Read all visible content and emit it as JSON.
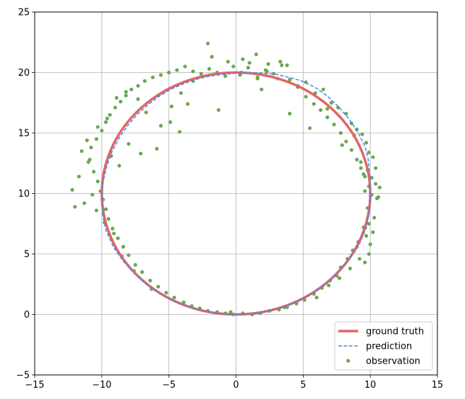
{
  "chart_data": {
    "type": "scatter",
    "title": "",
    "xlabel": "",
    "ylabel": "",
    "xlim": [
      -15,
      15
    ],
    "ylim": [
      -5,
      25
    ],
    "xticks": [
      -15,
      -10,
      -5,
      0,
      5,
      10,
      15
    ],
    "yticks": [
      -5,
      0,
      5,
      10,
      15,
      20,
      25
    ],
    "xtick_labels": [
      "−15",
      "−10",
      "−5",
      "0",
      "5",
      "10",
      "15"
    ],
    "ytick_labels": [
      "−5",
      "0",
      "5",
      "10",
      "15",
      "20",
      "25"
    ],
    "grid": true,
    "legend_position": "lower-right",
    "series": [
      {
        "name": "ground truth",
        "kind": "line",
        "style": "solid",
        "color": "#e06666",
        "shape": "circle",
        "center": [
          0,
          10
        ],
        "radius": 10
      },
      {
        "name": "prediction",
        "kind": "line",
        "style": "dashed",
        "color": "#4a86e8",
        "x": [
          0.0,
          1.0,
          2.0,
          2.98,
          3.95,
          4.9,
          5.83,
          6.72,
          7.57,
          8.37,
          9.1,
          9.72,
          10.0,
          9.98,
          9.85,
          9.6,
          9.1,
          8.4,
          7.6,
          6.75,
          5.85,
          4.9,
          3.95,
          3.0,
          2.0,
          1.0,
          0.0,
          -0.98,
          -1.95,
          -2.9,
          -3.85,
          -4.8,
          -5.7,
          -6.55,
          -7.35,
          -8.05,
          -8.7,
          -9.25,
          -9.65,
          -9.92,
          -10.0,
          -9.95,
          -9.7,
          -9.15,
          -8.4,
          -7.6,
          -6.75,
          -5.85,
          -4.9,
          -3.95,
          -3.0,
          -2.0,
          -1.0,
          0.0
        ],
        "y": [
          0.0,
          0.05,
          0.2,
          0.45,
          0.8,
          1.25,
          1.85,
          2.6,
          3.45,
          4.45,
          5.6,
          7.2,
          9.4,
          11.3,
          12.8,
          13.9,
          15.0,
          16.2,
          17.2,
          18.1,
          18.8,
          19.3,
          19.6,
          19.85,
          19.95,
          20.0,
          19.95,
          19.85,
          19.7,
          19.45,
          19.1,
          18.65,
          18.05,
          17.35,
          16.55,
          15.65,
          14.6,
          13.45,
          12.2,
          10.9,
          9.6,
          8.3,
          7.0,
          5.6,
          4.4,
          3.4,
          2.6,
          1.85,
          1.25,
          0.8,
          0.45,
          0.2,
          0.05,
          0.0
        ]
      },
      {
        "name": "observation",
        "kind": "scatter",
        "color": "#6aa84f",
        "x": [
          0.3,
          0.9,
          1.6,
          2.3,
          3.1,
          3.8,
          4.6,
          5.2,
          5.9,
          6.5,
          7.1,
          7.6,
          8.2,
          8.6,
          9.0,
          9.4,
          9.7,
          9.9,
          10.2,
          10.4,
          10.1,
          9.6,
          10.5,
          9.8,
          10.3,
          9.5,
          9.7,
          10.0,
          9.9,
          9.6,
          10.4,
          10.6,
          9.8,
          9.3,
          9.9,
          9.1,
          8.7,
          8.3,
          7.8,
          7.5,
          7.0,
          6.4,
          5.8,
          5.1,
          4.5,
          3.8,
          3.2,
          2.5,
          1.8,
          1.2,
          0.5,
          -0.2,
          -0.8,
          -1.4,
          -2.1,
          -2.7,
          -3.3,
          -3.9,
          -4.6,
          -5.2,
          -5.8,
          -6.4,
          -7.0,
          -7.5,
          -8.0,
          -8.4,
          -8.8,
          -9.2,
          -9.5,
          -9.7,
          -9.9,
          -10.1,
          -10.3,
          -10.6,
          -11.0,
          -11.5,
          -12.2,
          -11.7,
          -10.8,
          -10.4,
          -10.0,
          -9.7,
          -9.4,
          -9.0,
          -8.6,
          -8.2,
          -7.8,
          -7.3,
          -6.8,
          -6.2,
          -5.6,
          -5.0,
          -4.4,
          -3.8,
          -3.2,
          -2.6,
          -2.0,
          -1.4,
          -0.8,
          -0.2,
          0.4,
          1.0,
          1.6,
          2.2,
          2.8,
          3.4,
          4.0,
          4.6,
          5.2,
          5.8,
          6.3,
          6.8,
          7.3,
          7.8,
          8.2,
          8.6,
          9.0,
          9.3,
          9.6,
          9.9,
          10.1,
          -2.1,
          -1.8,
          -0.6,
          0.5,
          1.5,
          2.4,
          3.3,
          -3.2,
          -4.1,
          -4.8,
          -5.6,
          -6.7,
          -7.3,
          -8.2,
          -8.9,
          -9.6,
          -10.3,
          -11.1,
          -10.9,
          -9.3,
          -8.7,
          -8.0,
          -7.1,
          -5.9,
          -4.9,
          -4.2,
          -3.6,
          -1.3,
          1.9,
          4.0,
          5.5,
          6.8,
          7.9,
          8.8,
          9.5,
          10.7,
          10.2,
          9.2,
          8.5,
          7.7,
          6.9,
          6.0,
          3.6,
          -0.4,
          -6.3,
          -7.6,
          -8.5,
          -9.1,
          -9.8,
          -10.4,
          -11.3,
          -12.0,
          -10.7
        ],
        "y": [
          19.8,
          20.4,
          19.6,
          20.1,
          19.5,
          20.6,
          18.9,
          19.2,
          18.3,
          18.6,
          17.5,
          17.1,
          16.6,
          15.8,
          15.3,
          14.9,
          14.2,
          13.4,
          13.0,
          12.1,
          11.3,
          10.2,
          9.6,
          8.8,
          8.0,
          7.2,
          6.5,
          5.8,
          5.0,
          4.3,
          10.8,
          9.7,
          11.9,
          12.6,
          7.5,
          6.0,
          5.3,
          4.6,
          3.9,
          3.2,
          2.8,
          2.2,
          1.7,
          1.2,
          0.9,
          0.6,
          0.4,
          0.3,
          0.1,
          0.0,
          0.1,
          0.0,
          0.1,
          0.2,
          0.3,
          0.5,
          0.7,
          1.0,
          1.4,
          1.8,
          2.3,
          2.8,
          3.5,
          4.1,
          4.9,
          5.6,
          6.3,
          7.1,
          7.9,
          8.7,
          9.5,
          10.2,
          11.0,
          11.8,
          12.6,
          13.5,
          10.3,
          11.4,
          13.8,
          14.5,
          15.2,
          15.9,
          16.5,
          17.1,
          17.6,
          18.1,
          18.6,
          18.9,
          19.3,
          19.6,
          19.8,
          20.0,
          20.2,
          20.5,
          20.1,
          19.9,
          20.3,
          20.0,
          19.7,
          20.5,
          20.0,
          20.8,
          19.5,
          20.2,
          19.9,
          20.6,
          19.4,
          18.8,
          18.0,
          17.4,
          16.9,
          16.3,
          15.7,
          15.0,
          14.3,
          13.6,
          12.8,
          12.1,
          11.4,
          10.6,
          9.9,
          22.4,
          21.3,
          20.9,
          21.1,
          21.5,
          20.7,
          20.9,
          19.3,
          18.3,
          17.2,
          15.6,
          16.7,
          17.8,
          18.4,
          17.9,
          16.2,
          15.5,
          14.4,
          12.8,
          13.1,
          12.3,
          14.1,
          13.3,
          13.7,
          15.9,
          15.1,
          17.4,
          16.9,
          18.6,
          16.6,
          15.4,
          17.0,
          14.0,
          14.8,
          11.6,
          10.5,
          6.8,
          4.6,
          3.8,
          3.0,
          2.4,
          1.4,
          0.6,
          0.2,
          2.1,
          3.6,
          4.8,
          6.7,
          7.6,
          8.6,
          9.2,
          8.9,
          9.9
        ]
      }
    ]
  }
}
